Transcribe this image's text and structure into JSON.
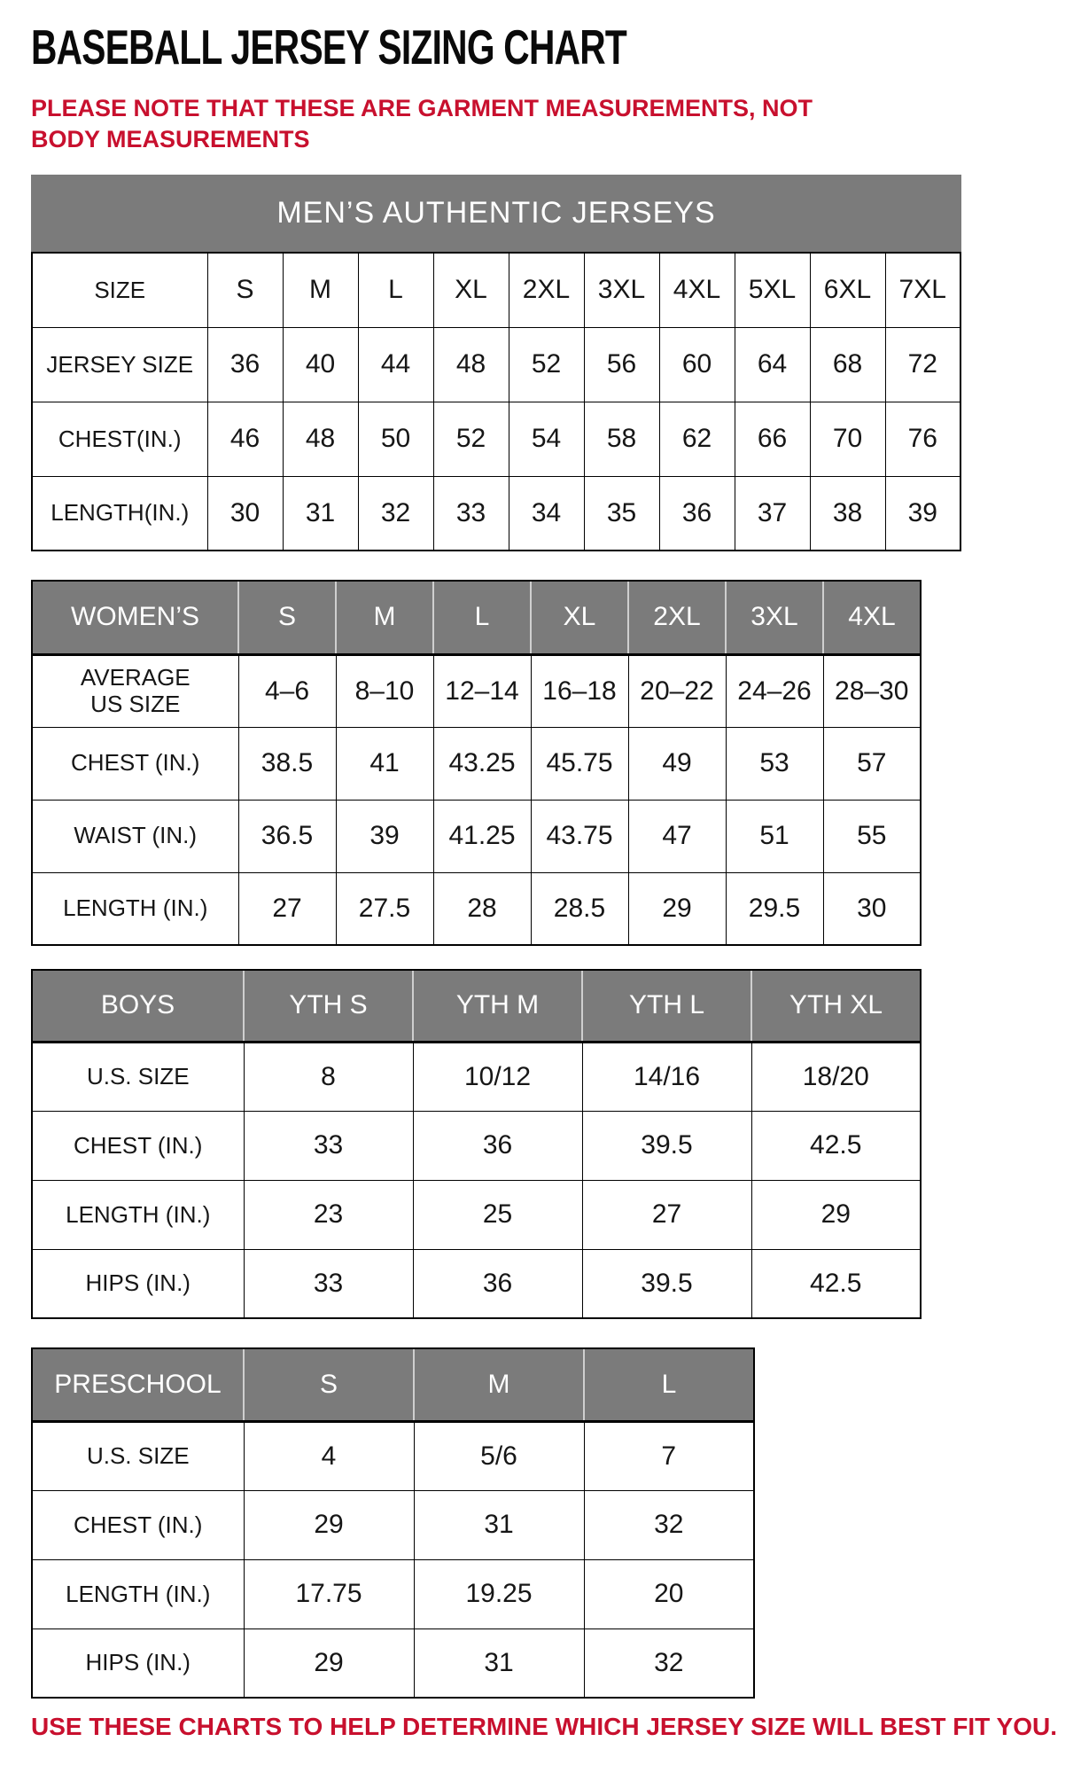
{
  "page": {
    "title": "BASEBALL JERSEY SIZING CHART",
    "note": "PLEASE NOTE THAT THESE ARE GARMENT MEASUREMENTS, NOT BODY MEASUREMENTS",
    "footer": "USE THESE CHARTS TO HELP DETERMINE WHICH JERSEY SIZE WILL BEST FIT YOU.",
    "colors": {
      "accent_red": "#C8102E",
      "header_gray": "#7B7B7B"
    }
  },
  "tables": {
    "mens": {
      "banner": "MEN’S AUTHENTIC JERSEYS",
      "rows": [
        [
          "SIZE",
          "S",
          "M",
          "L",
          "XL",
          "2XL",
          "3XL",
          "4XL",
          "5XL",
          "6XL",
          "7XL"
        ],
        [
          "JERSEY SIZE",
          "36",
          "40",
          "44",
          "48",
          "52",
          "56",
          "60",
          "64",
          "68",
          "72"
        ],
        [
          "CHEST(IN.)",
          "46",
          "48",
          "50",
          "52",
          "54",
          "58",
          "62",
          "66",
          "70",
          "76"
        ],
        [
          "LENGTH(IN.)",
          "30",
          "31",
          "32",
          "33",
          "34",
          "35",
          "36",
          "37",
          "38",
          "39"
        ]
      ]
    },
    "womens": {
      "header": [
        "WOMEN’S",
        "S",
        "M",
        "L",
        "XL",
        "2XL",
        "3XL",
        "4XL"
      ],
      "rows": [
        [
          "AVERAGE\nUS SIZE",
          "4–6",
          "8–10",
          "12–14",
          "16–18",
          "20–22",
          "24–26",
          "28–30"
        ],
        [
          "CHEST (IN.)",
          "38.5",
          "41",
          "43.25",
          "45.75",
          "49",
          "53",
          "57"
        ],
        [
          "WAIST (IN.)",
          "36.5",
          "39",
          "41.25",
          "43.75",
          "47",
          "51",
          "55"
        ],
        [
          "LENGTH (IN.)",
          "27",
          "27.5",
          "28",
          "28.5",
          "29",
          "29.5",
          "30"
        ]
      ]
    },
    "boys": {
      "header": [
        "BOYS",
        "YTH S",
        "YTH M",
        "YTH L",
        "YTH XL"
      ],
      "rows": [
        [
          "U.S. SIZE",
          "8",
          "10/12",
          "14/16",
          "18/20"
        ],
        [
          "CHEST (IN.)",
          "33",
          "36",
          "39.5",
          "42.5"
        ],
        [
          "LENGTH (IN.)",
          "23",
          "25",
          "27",
          "29"
        ],
        [
          "HIPS (IN.)",
          "33",
          "36",
          "39.5",
          "42.5"
        ]
      ]
    },
    "preschool": {
      "header": [
        "PRESCHOOL",
        "S",
        "M",
        "L"
      ],
      "rows": [
        [
          "U.S. SIZE",
          "4",
          "5/6",
          "7"
        ],
        [
          "CHEST (IN.)",
          "29",
          "31",
          "32"
        ],
        [
          "LENGTH (IN.)",
          "17.75",
          "19.25",
          "20"
        ],
        [
          "HIPS (IN.)",
          "29",
          "31",
          "32"
        ]
      ]
    }
  }
}
